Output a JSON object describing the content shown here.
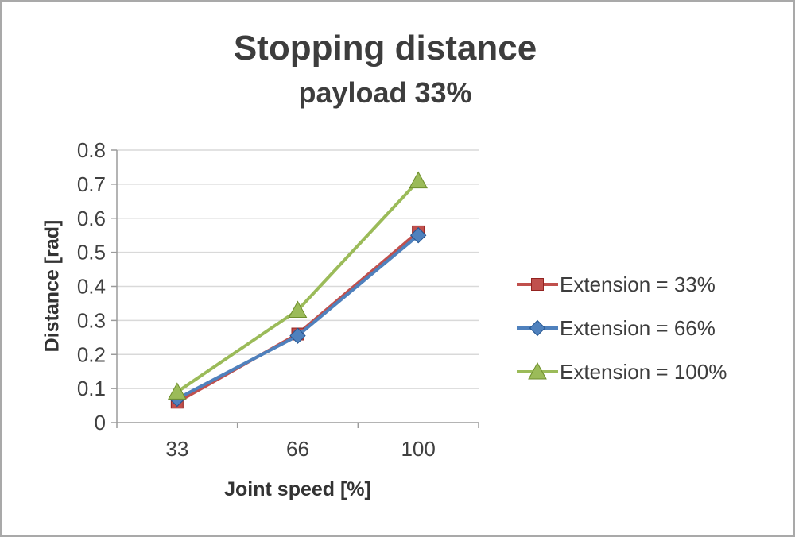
{
  "chart_data": {
    "type": "line",
    "title": "Stopping distance",
    "subtitle": "payload 33%",
    "xlabel": "Joint speed [%]",
    "ylabel": "Distance [rad]",
    "categories": [
      "33",
      "66",
      "100"
    ],
    "series": [
      {
        "name": "Extension = 33%",
        "marker": "square",
        "color": "#c0504d",
        "values": [
          0.06,
          0.26,
          0.56
        ]
      },
      {
        "name": "Extension = 66%",
        "marker": "diamond",
        "color": "#4f81bd",
        "values": [
          0.07,
          0.255,
          0.55
        ]
      },
      {
        "name": "Extension = 100%",
        "marker": "triangle",
        "color": "#9bbb59",
        "values": [
          0.09,
          0.33,
          0.71
        ]
      }
    ],
    "ylim": [
      0,
      0.8
    ],
    "yticks": [
      0,
      0.1,
      0.2,
      0.3,
      0.4,
      0.5,
      0.6,
      0.7,
      0.8
    ],
    "grid": true,
    "legend_position": "right",
    "colors": {
      "grid": "#d9d9d9",
      "axis": "#9b9b9b",
      "text": "#404040"
    }
  }
}
